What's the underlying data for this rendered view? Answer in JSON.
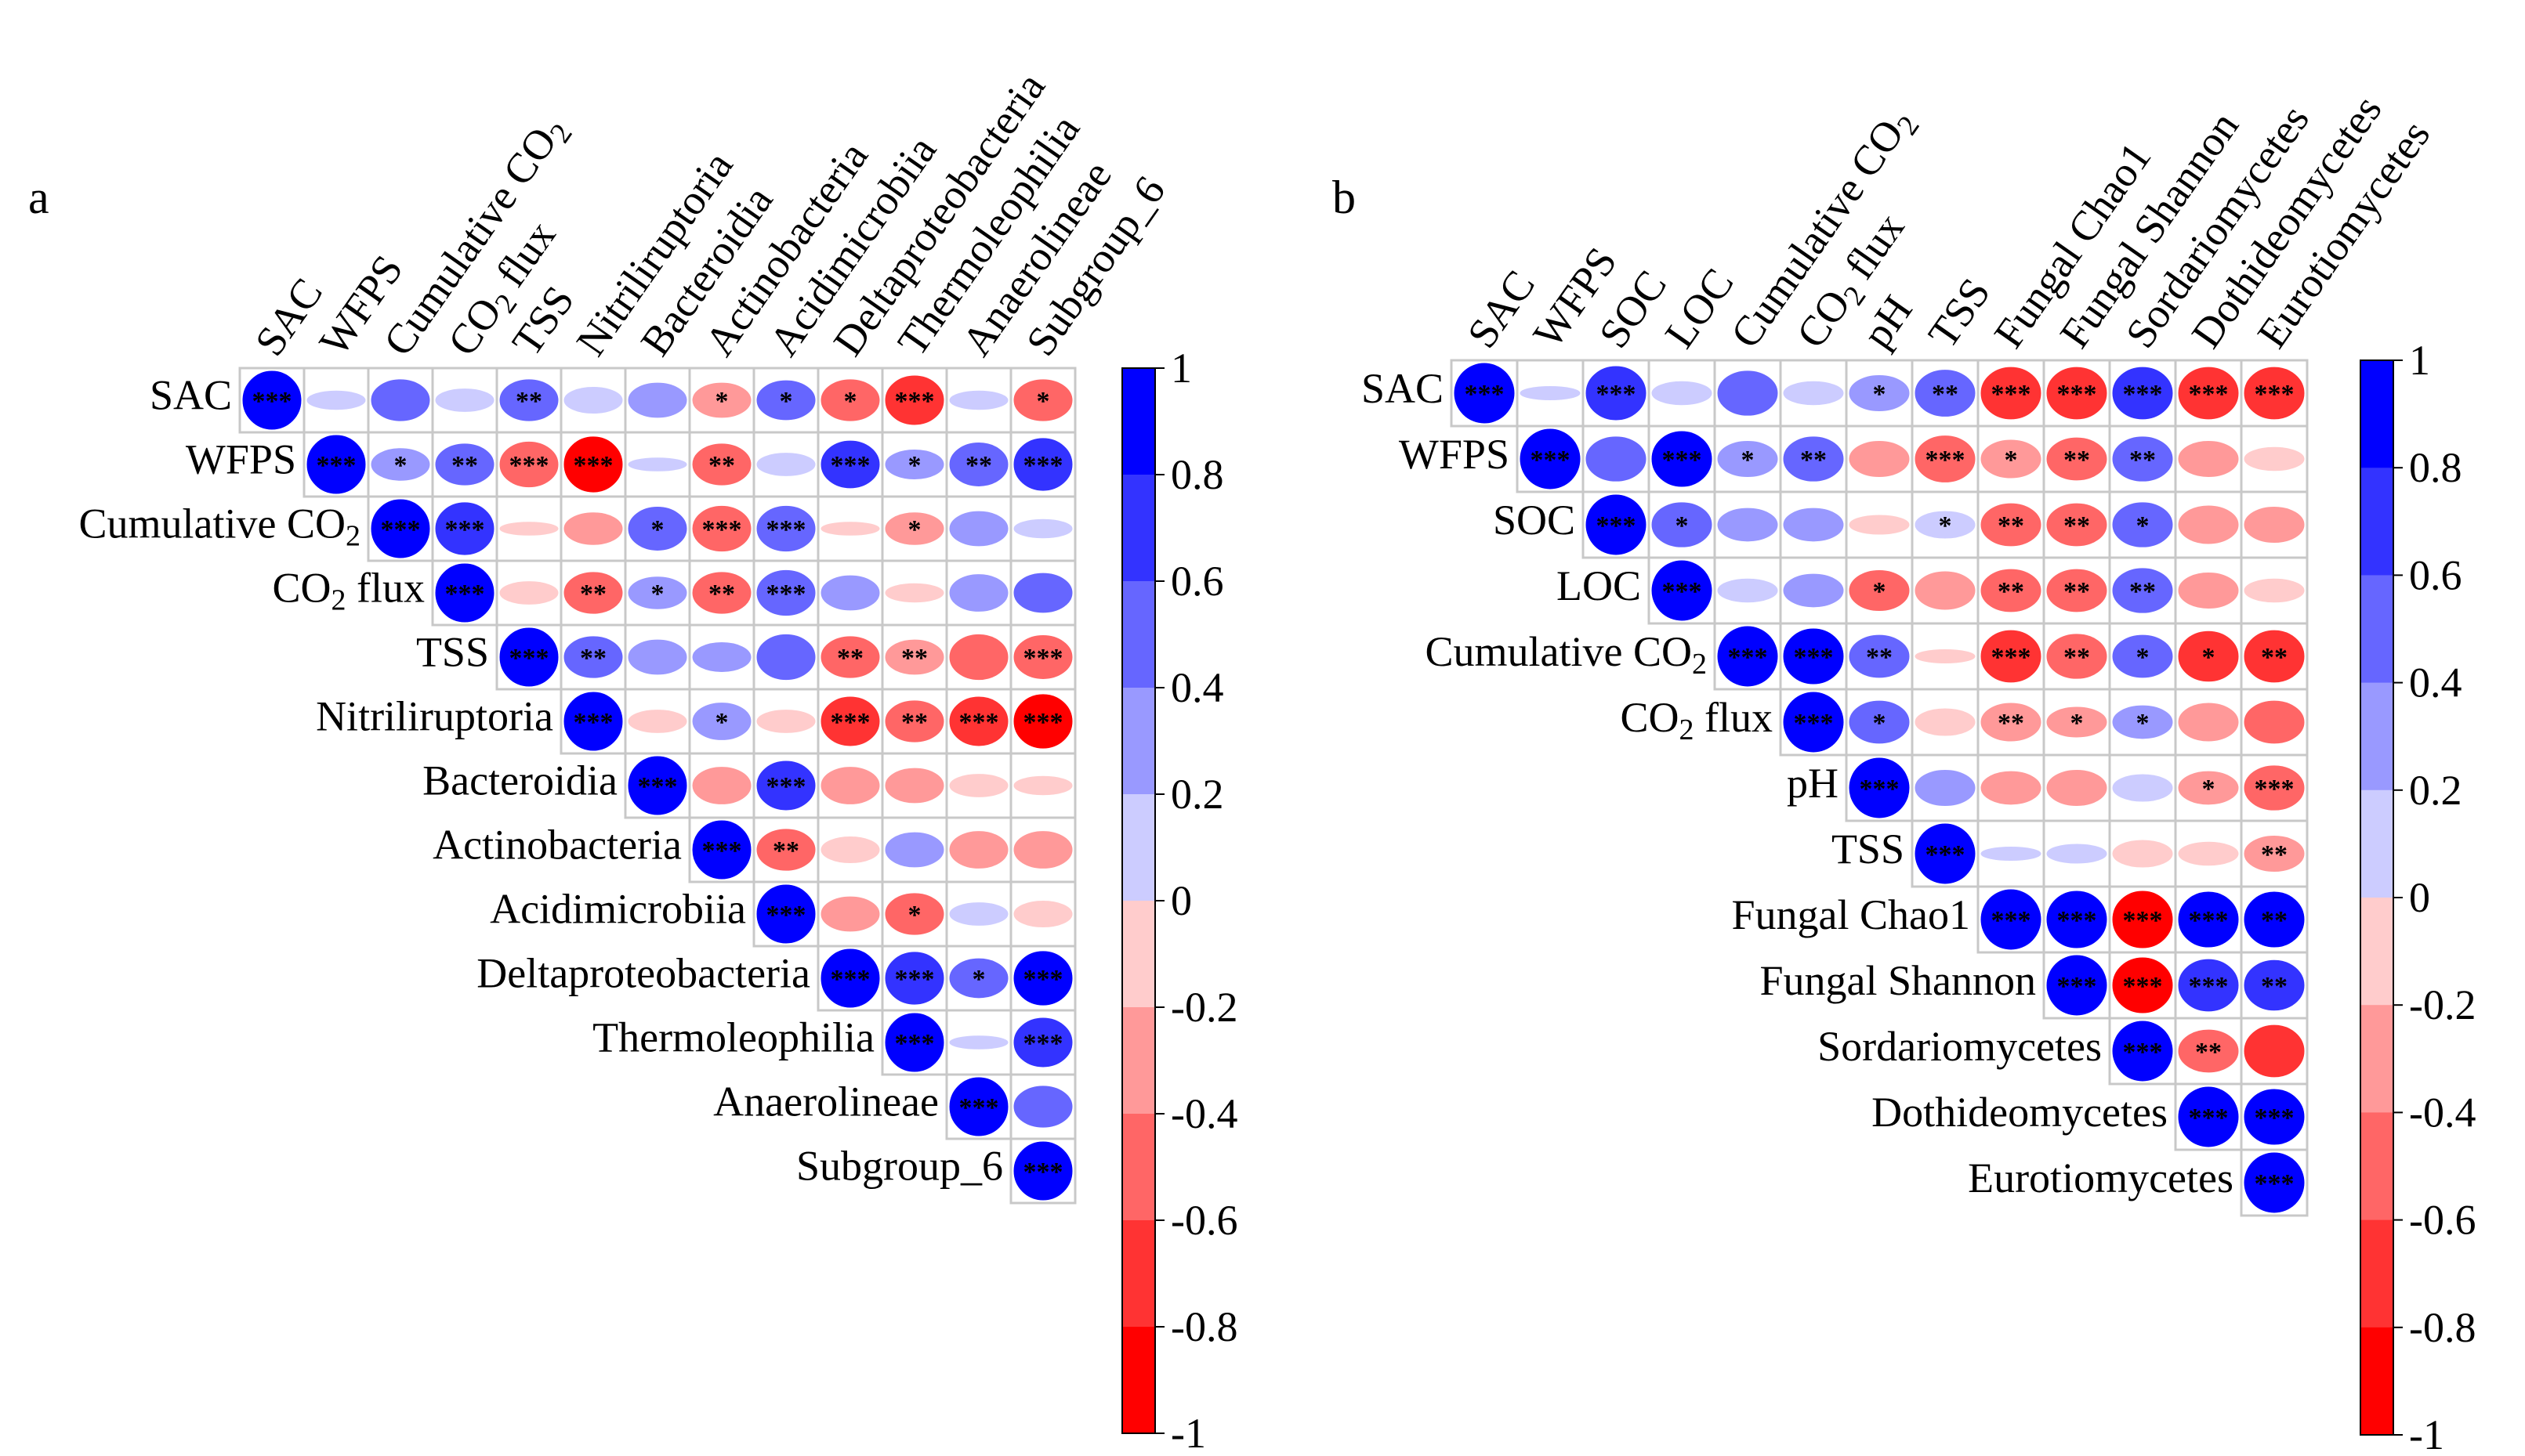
{
  "colors": {
    "positive": "#0000FF",
    "negative": "#FF0000",
    "neutral": "#FFFFFF",
    "grid": "#C8C8C8",
    "stars": "#000000"
  },
  "chart_data": [
    {
      "type": "heatmap",
      "subtype": "correlogram-upper-triangle",
      "panel": "a",
      "title": "",
      "variables": [
        "SAC",
        "WFPS",
        "Cumulative CO2",
        "CO2 flux",
        "TSS",
        "Nitriliruptoria",
        "Bacteroidia",
        "Actinobacteria",
        "Acidimicrobiia",
        "Deltaproteobacteria",
        "Thermoleophilia",
        "Anaerolineae",
        "Subgroup_6"
      ],
      "matrix": [
        [
          1,
          0.1,
          0.5,
          0.15,
          0.5,
          0.2,
          0.35,
          -0.35,
          0.45,
          -0.5,
          -0.7,
          0.1,
          -0.5
        ],
        [
          null,
          1,
          0.3,
          0.5,
          -0.6,
          -0.9,
          0.05,
          -0.5,
          0.15,
          0.65,
          0.25,
          0.55,
          0.8
        ],
        [
          null,
          null,
          1,
          0.8,
          -0.05,
          -0.3,
          0.55,
          -0.6,
          0.6,
          -0.05,
          -0.3,
          0.35,
          0.1
        ],
        [
          null,
          null,
          null,
          1,
          -0.15,
          -0.5,
          0.3,
          -0.5,
          0.6,
          0.35,
          -0.1,
          0.4,
          0.45
        ],
        [
          null,
          null,
          null,
          null,
          1,
          0.5,
          0.35,
          0.25,
          0.6,
          -0.5,
          -0.35,
          -0.6,
          -0.55
        ],
        [
          null,
          null,
          null,
          null,
          null,
          1,
          -0.15,
          0.4,
          -0.15,
          -0.7,
          -0.5,
          -0.7,
          -0.85
        ],
        [
          null,
          null,
          null,
          null,
          null,
          null,
          1,
          -0.4,
          0.7,
          -0.4,
          -0.35,
          -0.15,
          -0.1
        ],
        [
          null,
          null,
          null,
          null,
          null,
          null,
          null,
          1,
          -0.5,
          -0.2,
          0.35,
          -0.4,
          -0.4
        ],
        [
          null,
          null,
          null,
          null,
          null,
          null,
          null,
          null,
          1,
          -0.35,
          -0.5,
          0.15,
          -0.2
        ],
        [
          null,
          null,
          null,
          null,
          null,
          null,
          null,
          null,
          null,
          1,
          0.8,
          0.45,
          0.85
        ],
        [
          null,
          null,
          null,
          null,
          null,
          null,
          null,
          null,
          null,
          null,
          1,
          0.05,
          0.7
        ],
        [
          null,
          null,
          null,
          null,
          null,
          null,
          null,
          null,
          null,
          null,
          null,
          1,
          0.5
        ],
        [
          null,
          null,
          null,
          null,
          null,
          null,
          null,
          null,
          null,
          null,
          null,
          null,
          1
        ]
      ],
      "significance": [
        [
          "***",
          "",
          "",
          "",
          "**",
          "",
          "",
          "*",
          "*",
          "*",
          "***",
          "",
          "*"
        ],
        [
          null,
          "***",
          "*",
          "**",
          "***",
          "***",
          "",
          "**",
          "",
          "***",
          "*",
          "**",
          "***"
        ],
        [
          null,
          null,
          "***",
          "***",
          "",
          "",
          "*",
          "***",
          "***",
          "",
          "*",
          "",
          ""
        ],
        [
          null,
          null,
          null,
          "***",
          "",
          "**",
          "*",
          "**",
          "***",
          "",
          "",
          "",
          ""
        ],
        [
          null,
          null,
          null,
          null,
          "***",
          "**",
          "",
          "",
          "",
          "**",
          "**",
          "",
          "***"
        ],
        [
          null,
          null,
          null,
          null,
          null,
          "***",
          "",
          "*",
          "",
          "***",
          "**",
          "***",
          "***"
        ],
        [
          null,
          null,
          null,
          null,
          null,
          null,
          "***",
          "",
          "***",
          "",
          "",
          "",
          ""
        ],
        [
          null,
          null,
          null,
          null,
          null,
          null,
          null,
          "***",
          "**",
          "",
          "",
          "",
          ""
        ],
        [
          null,
          null,
          null,
          null,
          null,
          null,
          null,
          null,
          "***",
          "",
          "*",
          "",
          ""
        ],
        [
          null,
          null,
          null,
          null,
          null,
          null,
          null,
          null,
          null,
          "***",
          "***",
          "*",
          "***"
        ],
        [
          null,
          null,
          null,
          null,
          null,
          null,
          null,
          null,
          null,
          null,
          "***",
          "",
          "***"
        ],
        [
          null,
          null,
          null,
          null,
          null,
          null,
          null,
          null,
          null,
          null,
          null,
          "***",
          ""
        ],
        [
          null,
          null,
          null,
          null,
          null,
          null,
          null,
          null,
          null,
          null,
          null,
          null,
          "***"
        ]
      ],
      "colorbar": {
        "range": [
          -1,
          1
        ],
        "ticks": [
          "1",
          "0.8",
          "0.6",
          "0.4",
          "0.2",
          "0",
          "-0.2",
          "-0.4",
          "-0.6",
          "-0.8",
          "-1"
        ]
      }
    },
    {
      "type": "heatmap",
      "subtype": "correlogram-upper-triangle",
      "panel": "b",
      "title": "",
      "variables": [
        "SAC",
        "WFPS",
        "SOC",
        "LOC",
        "Cumulative CO2",
        "CO2 flux",
        "pH",
        "TSS",
        "Fungal Chao1",
        "Fungal Shannon",
        "Sordariomycetes",
        "Dothideomycetes",
        "Eurotiomycetes"
      ],
      "matrix": [
        [
          1,
          0.05,
          0.8,
          0.15,
          0.55,
          0.15,
          0.35,
          0.6,
          -0.75,
          -0.75,
          0.75,
          -0.75,
          -0.75
        ],
        [
          null,
          1,
          0.55,
          0.85,
          0.35,
          0.55,
          -0.35,
          -0.6,
          -0.4,
          -0.5,
          0.55,
          -0.35,
          -0.15
        ],
        [
          null,
          null,
          1,
          0.55,
          0.3,
          0.3,
          -0.1,
          0.2,
          -0.5,
          -0.5,
          0.55,
          -0.4,
          -0.35
        ],
        [
          null,
          null,
          null,
          1,
          0.15,
          0.3,
          -0.45,
          -0.4,
          -0.5,
          -0.5,
          0.55,
          -0.35,
          -0.15
        ],
        [
          null,
          null,
          null,
          null,
          1,
          0.85,
          0.5,
          -0.05,
          -0.75,
          -0.55,
          0.5,
          -0.7,
          -0.75
        ],
        [
          null,
          null,
          null,
          null,
          null,
          1,
          0.5,
          -0.2,
          -0.4,
          -0.25,
          0.3,
          -0.4,
          -0.5
        ],
        [
          null,
          null,
          null,
          null,
          null,
          null,
          1,
          0.35,
          -0.3,
          -0.35,
          0.2,
          -0.3,
          -0.55
        ],
        [
          null,
          null,
          null,
          null,
          null,
          null,
          null,
          1,
          0.05,
          0.1,
          -0.2,
          -0.15,
          -0.35
        ],
        [
          null,
          null,
          null,
          null,
          null,
          null,
          null,
          null,
          1,
          0.9,
          -0.9,
          0.85,
          0.85
        ],
        [
          null,
          null,
          null,
          null,
          null,
          null,
          null,
          null,
          null,
          1,
          -0.85,
          0.75,
          0.7
        ],
        [
          null,
          null,
          null,
          null,
          null,
          null,
          null,
          null,
          null,
          null,
          1,
          -0.5,
          -0.75
        ],
        [
          null,
          null,
          null,
          null,
          null,
          null,
          null,
          null,
          null,
          null,
          null,
          1,
          0.85
        ],
        [
          null,
          null,
          null,
          null,
          null,
          null,
          null,
          null,
          null,
          null,
          null,
          null,
          1
        ]
      ],
      "significance": [
        [
          "***",
          "",
          "***",
          "",
          "",
          "",
          "*",
          "**",
          "***",
          "***",
          "***",
          "***",
          "***"
        ],
        [
          null,
          "***",
          "",
          "***",
          "*",
          "**",
          "",
          "***",
          "*",
          "**",
          "**",
          "",
          ""
        ],
        [
          null,
          null,
          "***",
          "*",
          "",
          "",
          "",
          "*",
          "**",
          "**",
          "*",
          "",
          ""
        ],
        [
          null,
          null,
          null,
          "***",
          "",
          "",
          "*",
          "",
          "**",
          "**",
          "**",
          "",
          ""
        ],
        [
          null,
          null,
          null,
          null,
          "***",
          "***",
          "**",
          "",
          "***",
          "**",
          "*",
          "*",
          "**"
        ],
        [
          null,
          null,
          null,
          null,
          null,
          "***",
          "*",
          "",
          "**",
          "*",
          "*",
          "",
          ""
        ],
        [
          null,
          null,
          null,
          null,
          null,
          null,
          "***",
          "",
          "",
          "",
          "",
          "*",
          "***"
        ],
        [
          null,
          null,
          null,
          null,
          null,
          null,
          null,
          "***",
          "",
          "",
          "",
          "",
          "**"
        ],
        [
          null,
          null,
          null,
          null,
          null,
          null,
          null,
          null,
          "***",
          "***",
          "***",
          "***",
          "**"
        ],
        [
          null,
          null,
          null,
          null,
          null,
          null,
          null,
          null,
          null,
          "***",
          "***",
          "***",
          "**"
        ],
        [
          null,
          null,
          null,
          null,
          null,
          null,
          null,
          null,
          null,
          null,
          "***",
          "**",
          ""
        ],
        [
          null,
          null,
          null,
          null,
          null,
          null,
          null,
          null,
          null,
          null,
          null,
          "***",
          "***"
        ],
        [
          null,
          null,
          null,
          null,
          null,
          null,
          null,
          null,
          null,
          null,
          null,
          null,
          "***"
        ]
      ],
      "colorbar": {
        "range": [
          -1,
          1
        ],
        "ticks": [
          "1",
          "0.8",
          "0.6",
          "0.4",
          "0.2",
          "0",
          "-0.2",
          "-0.4",
          "-0.6",
          "-0.8",
          "-1"
        ]
      }
    }
  ]
}
